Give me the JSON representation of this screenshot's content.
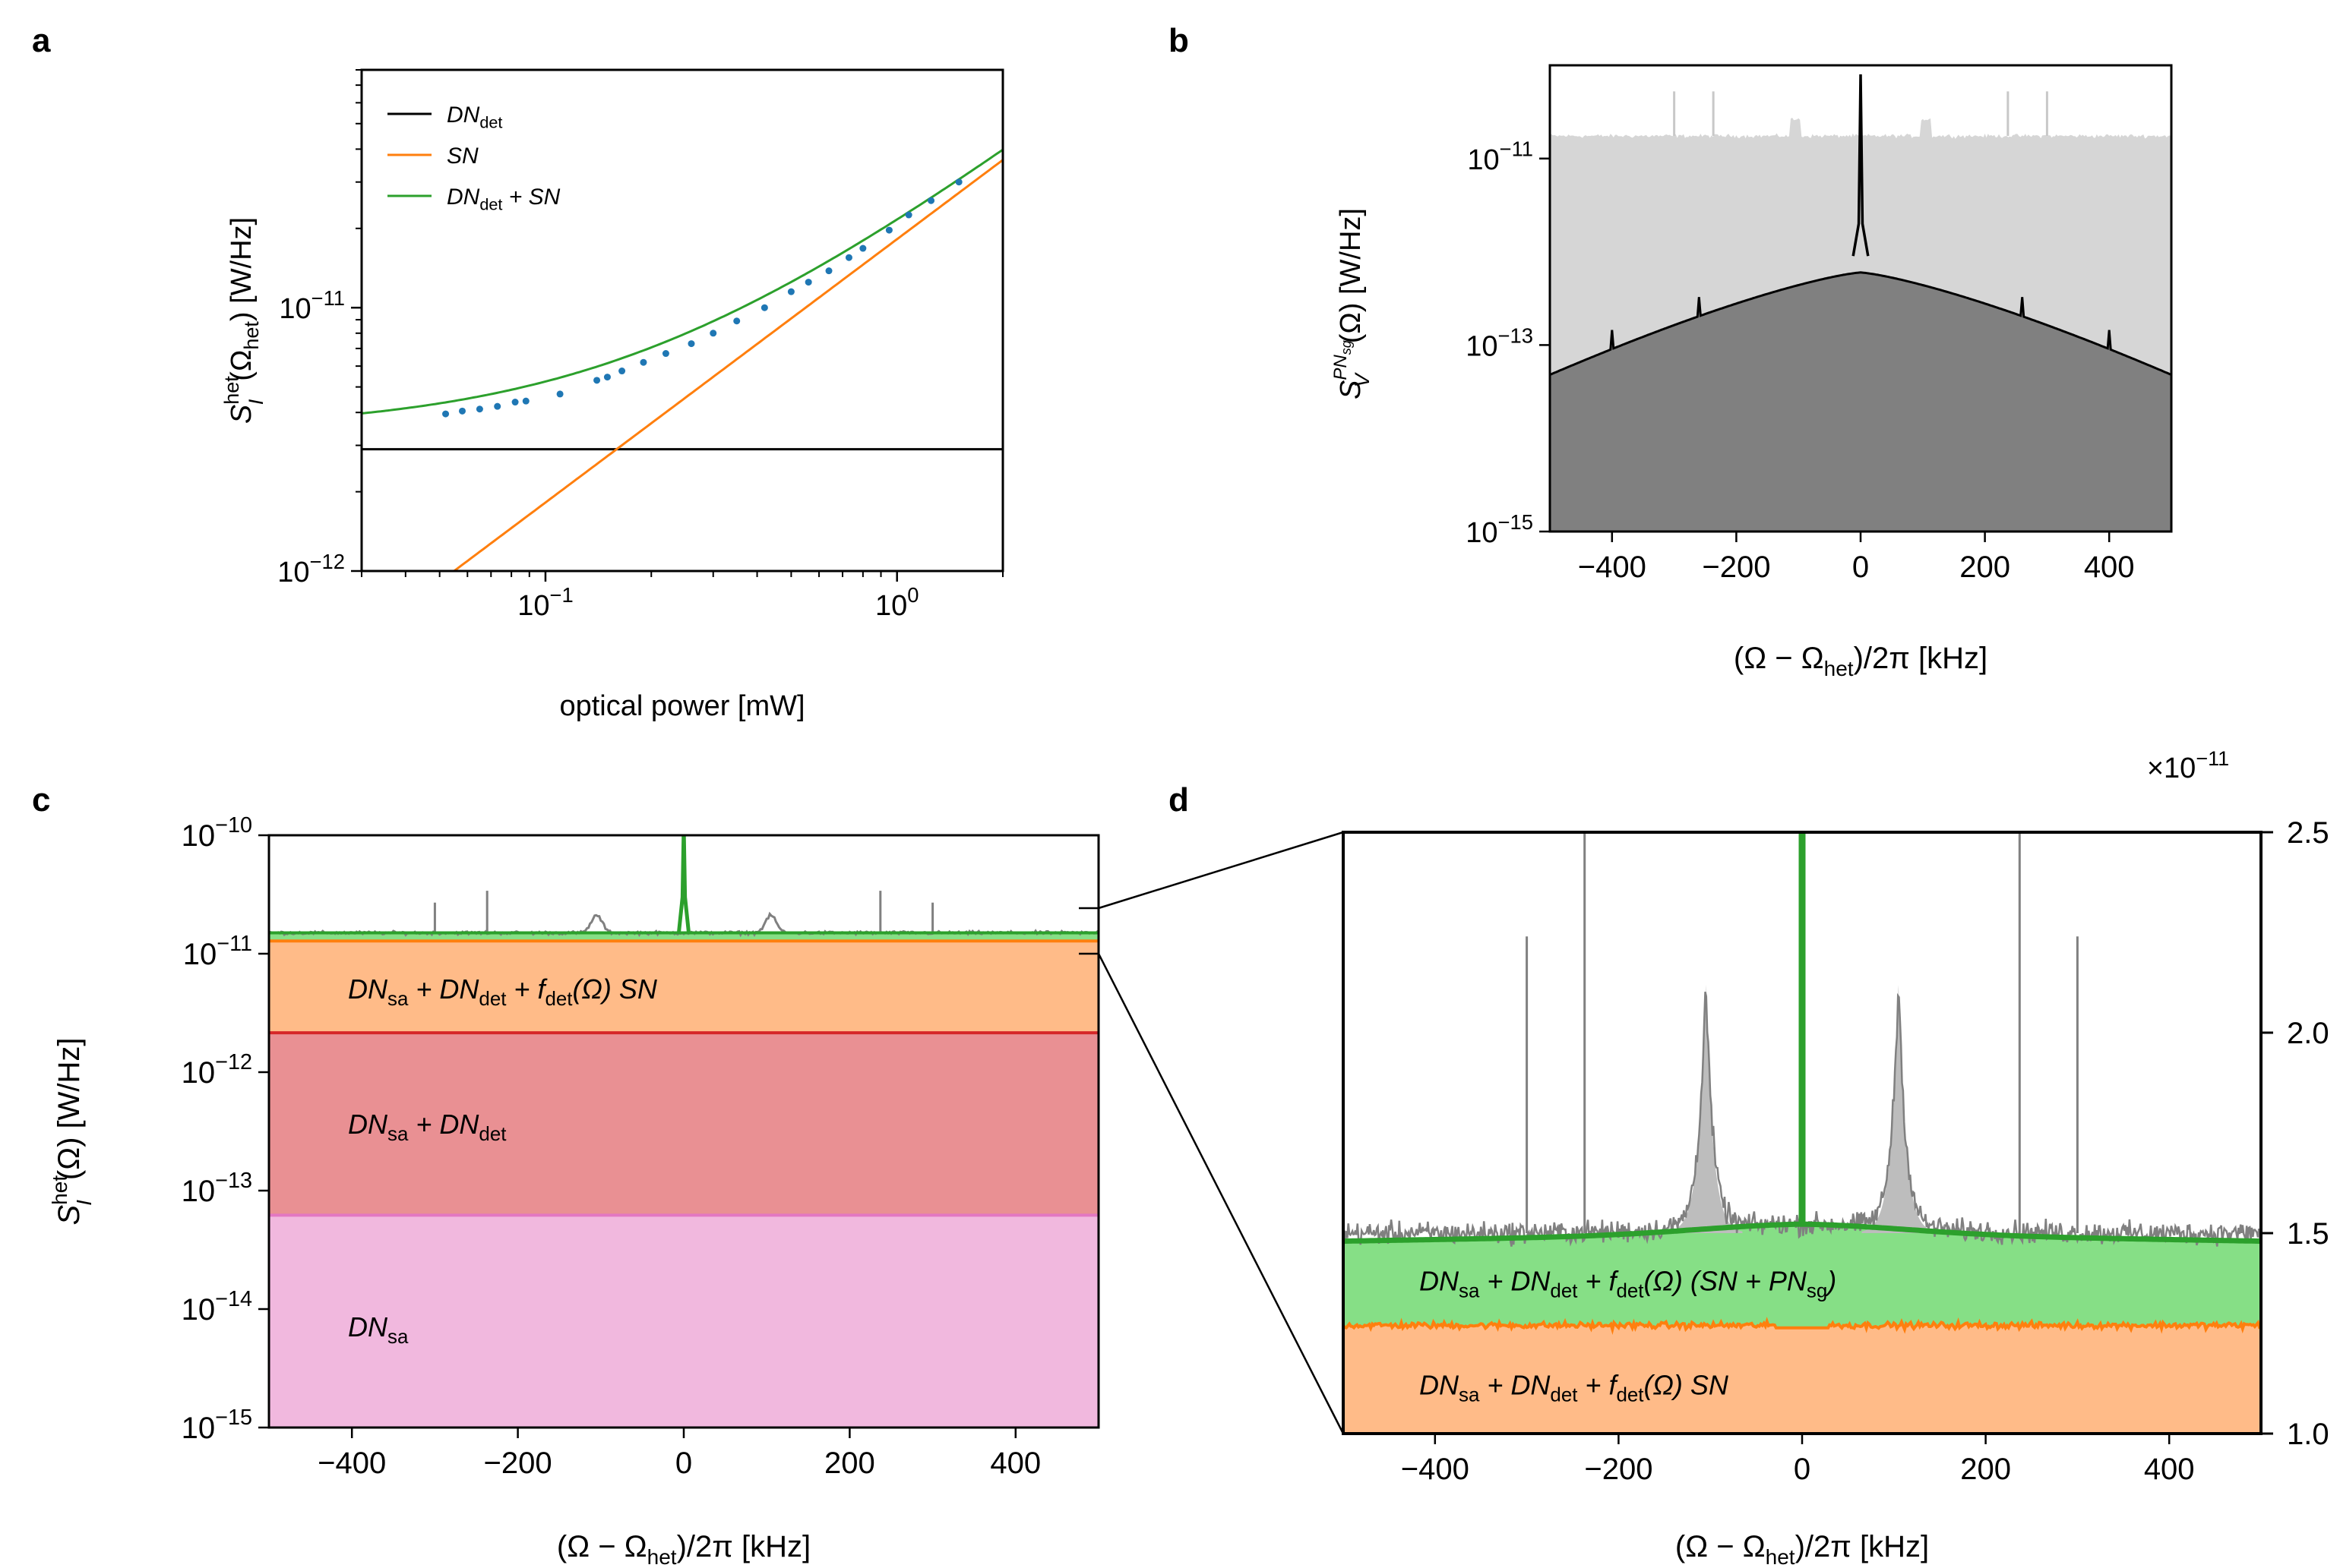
{
  "colors": {
    "black": "#000000",
    "orange": "#ff7f0e",
    "green": "#2ca02c",
    "blue": "#1f77b4",
    "gray": "#808080",
    "lightgray": "#d6d6d6",
    "darkgray": "#808080",
    "red": "#d62728",
    "pink": "#e377c2",
    "orange_fill": "#ffbb88",
    "red_fill": "#e99093",
    "pink_fill": "#f1b8de",
    "green_fill": "#86df86"
  },
  "chart_data": [
    {
      "panel": "a",
      "type": "line",
      "xlabel": "optical power [mW]",
      "ylabel_main": "S",
      "ylabel_sup": "het",
      "ylabel_sub": "I",
      "ylabel_arg": "(Ω",
      "ylabel_argsub": "het",
      "ylabel_unit": ") [W/Hz]",
      "xscale": "log",
      "yscale": "log",
      "xlim": [
        0.03,
        2.0
      ],
      "ylim": [
        1e-12,
        8e-11
      ],
      "xticks": [
        {
          "value": 0.1,
          "base": "10",
          "exp": "−1"
        },
        {
          "value": 1,
          "base": "10",
          "exp": "0"
        }
      ],
      "yticks": [
        {
          "value": 1e-12,
          "base": "10",
          "exp": "−12"
        },
        {
          "value": 1e-11,
          "base": "10",
          "exp": "−11"
        }
      ],
      "DN_det": 2.9e-12,
      "SN_slope": 1.82e-11,
      "legend": [
        {
          "main": "DN",
          "sub": "det",
          "rest": "",
          "color": "#000000"
        },
        {
          "main": "SN",
          "sub": "",
          "rest": "",
          "color": "#ff7f0e"
        },
        {
          "main": "DN",
          "sub": "det",
          "rest": " + SN",
          "color": "#2ca02c"
        }
      ],
      "measurements": {
        "x": [
          0.052,
          0.058,
          0.065,
          0.073,
          0.082,
          0.088,
          0.11,
          0.14,
          0.15,
          0.165,
          0.19,
          0.22,
          0.26,
          0.3,
          0.35,
          0.42,
          0.5,
          0.56,
          0.64,
          0.73,
          0.8,
          0.95,
          1.08,
          1.25,
          1.5
        ],
        "y": [
          3.95e-12,
          4.05e-12,
          4.12e-12,
          4.22e-12,
          4.38e-12,
          4.42e-12,
          4.7e-12,
          5.3e-12,
          5.45e-12,
          5.75e-12,
          6.2e-12,
          6.7e-12,
          7.3e-12,
          8e-12,
          8.9e-12,
          1e-11,
          1.15e-11,
          1.25e-11,
          1.38e-11,
          1.55e-11,
          1.68e-11,
          1.97e-11,
          2.25e-11,
          2.55e-11,
          3e-11
        ]
      }
    },
    {
      "panel": "b",
      "type": "area",
      "xlabel": "(Ω − Ω",
      "xlabel_sub": "het",
      "xlabel_rest": ")/2π [kHz]",
      "ylabel_main": "S",
      "ylabel_sub": "V",
      "ylabel_sup": "PN",
      "ylabel_supsub": "sg",
      "ylabel_rest": "(Ω) [W/Hz]",
      "xscale": "linear",
      "yscale": "log",
      "xlim": [
        -500,
        500
      ],
      "ylim": [
        1e-15,
        1e-10
      ],
      "xticks": [
        "−400",
        "−200",
        "0",
        "200",
        "400"
      ],
      "xtick_values": [
        -400,
        -200,
        0,
        200,
        400
      ],
      "yticks": [
        {
          "value": 1e-15,
          "base": "10",
          "exp": "−15"
        },
        {
          "value": 1e-13,
          "base": "10",
          "exp": "−13"
        },
        {
          "value": 1e-11,
          "base": "10",
          "exp": "−11"
        }
      ],
      "series": [
        {
          "name": "background",
          "level": 1.75e-11,
          "color": "#d6d6d6"
        },
        {
          "name": "phase noise",
          "peak": 6e-13,
          "edge": 4.8e-14,
          "center_spike": 8e-11,
          "color": "#808080"
        }
      ]
    },
    {
      "panel": "c",
      "type": "area",
      "xlabel": "(Ω − Ω",
      "xlabel_sub": "het",
      "xlabel_rest": ")/2π [kHz]",
      "ylabel_main": "S",
      "ylabel_sup": "het",
      "ylabel_sub": "I",
      "ylabel_rest": "(Ω) [W/Hz]",
      "xscale": "linear",
      "yscale": "log",
      "xlim": [
        -500,
        500
      ],
      "ylim": [
        1e-15,
        1e-10
      ],
      "xticks": [
        "−400",
        "−200",
        "0",
        "200",
        "400"
      ],
      "xtick_values": [
        -400,
        -200,
        0,
        200,
        400
      ],
      "yticks": [
        {
          "value": 1e-10,
          "base": "10",
          "exp": "−10"
        },
        {
          "value": 1e-11,
          "base": "10",
          "exp": "−11"
        },
        {
          "value": 1e-12,
          "base": "10",
          "exp": "−12"
        },
        {
          "value": 1e-13,
          "base": "10",
          "exp": "−13"
        },
        {
          "value": 1e-14,
          "base": "10",
          "exp": "−14"
        },
        {
          "value": 1e-15,
          "base": "10",
          "exp": "−15"
        }
      ],
      "levels": {
        "total": 1.5e-11,
        "sn_top": 1.28e-11,
        "det_top": 2.15e-12,
        "sa_top": 6.2e-14
      },
      "annotations": [
        {
          "label": "sn",
          "parts": [
            "DN",
            "sa",
            " + DN",
            "det",
            " + f",
            "det",
            "(Ω) SN"
          ],
          "y": 5e-12
        },
        {
          "label": "det",
          "parts": [
            "DN",
            "sa",
            " + DN",
            "det"
          ],
          "y": 3.6e-13
        },
        {
          "label": "sa",
          "parts": [
            "DN",
            "sa"
          ],
          "y": 7e-15
        }
      ]
    },
    {
      "panel": "d",
      "type": "area",
      "xlabel": "(Ω − Ω",
      "xlabel_sub": "het",
      "xlabel_rest": ")/2π [kHz]",
      "xscale": "linear",
      "yscale": "linear",
      "xlim": [
        -500,
        500
      ],
      "ylim": [
        1e-11,
        2.5e-11
      ],
      "offset_label": "×10",
      "offset_exp": "−11",
      "xticks": [
        "−400",
        "−200",
        "0",
        "200",
        "400"
      ],
      "xtick_values": [
        -400,
        -200,
        0,
        200,
        400
      ],
      "yticks": [
        "1.0",
        "1.5",
        "2.0",
        "2.5"
      ],
      "ytick_values": [
        1.0,
        1.5,
        2.0,
        2.5
      ],
      "levels": {
        "green_line": 1.5e-11,
        "orange_line": 1.27e-11
      },
      "spikes_kHz": [
        -300,
        -237,
        237,
        300
      ],
      "lorentz_peaks_kHz": [
        -105,
        105
      ],
      "annotations": [
        {
          "label": "pn",
          "parts": [
            "DN",
            "sa",
            " + DN",
            "det",
            " + f",
            "det",
            "(Ω) (SN + PN",
            "sg",
            ")"
          ],
          "y": 1.38e-11
        },
        {
          "label": "sn",
          "parts": [
            "DN",
            "sa",
            " + DN",
            "det",
            " + f",
            "det",
            "(Ω) SN"
          ],
          "y": 1.12e-11
        }
      ]
    }
  ],
  "panel_labels": [
    "a",
    "b",
    "c",
    "d"
  ]
}
